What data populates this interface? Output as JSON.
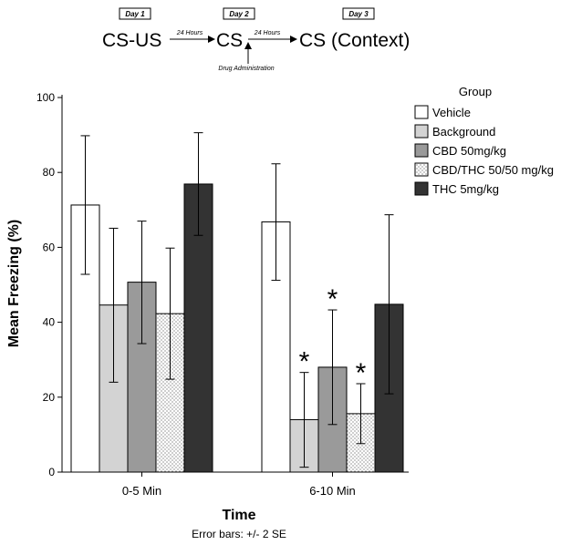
{
  "protocol": {
    "stages": [
      {
        "day": "Day 1",
        "label": "CS-US"
      },
      {
        "day": "Day 2",
        "label": "CS"
      },
      {
        "day": "Day 3",
        "label": "CS (Context)"
      }
    ],
    "arrows": [
      "24 Hours",
      "24 Hours"
    ],
    "drug_note": "Drug Administration"
  },
  "chart_data": {
    "type": "bar",
    "ylabel": "Mean Freezing (%)",
    "xlabel": "Time",
    "footnote": "Error bars: +/- 2 SE",
    "ylim": [
      0,
      100
    ],
    "yticks": [
      0,
      20,
      40,
      60,
      80,
      100
    ],
    "categories": [
      "0-5 Min",
      "6-10 Min"
    ],
    "legend_title": "Group",
    "series": [
      {
        "name": "Vehicle",
        "values": [
          71.3,
          66.8
        ],
        "err_low": [
          52.8,
          51.2
        ],
        "err_high": [
          89.8,
          82.3
        ],
        "fill": "#ffffff",
        "pattern": "none"
      },
      {
        "name": "Background",
        "values": [
          44.6,
          14.0
        ],
        "err_low": [
          24.0,
          1.3
        ],
        "err_high": [
          65.1,
          26.6
        ],
        "fill": "#d3d3d3",
        "pattern": "none"
      },
      {
        "name": "CBD 50mg/kg",
        "values": [
          50.7,
          28.0
        ],
        "err_low": [
          34.3,
          12.7
        ],
        "err_high": [
          67.0,
          43.3
        ],
        "fill": "#9a9a9a",
        "pattern": "none"
      },
      {
        "name": "CBD/THC 50/50 mg/kg",
        "values": [
          42.3,
          15.6
        ],
        "err_low": [
          24.8,
          7.6
        ],
        "err_high": [
          59.8,
          23.6
        ],
        "fill": "#ffffff",
        "pattern": "dots"
      },
      {
        "name": "THC 5mg/kg",
        "values": [
          76.9,
          44.8
        ],
        "err_low": [
          63.2,
          20.9
        ],
        "err_high": [
          90.6,
          68.7
        ],
        "fill": "#333333",
        "pattern": "none"
      }
    ],
    "significance": [
      {
        "category": 1,
        "series": 1,
        "symbol": "*"
      },
      {
        "category": 1,
        "series": 2,
        "symbol": "*"
      },
      {
        "category": 1,
        "series": 3,
        "symbol": "*"
      }
    ]
  }
}
